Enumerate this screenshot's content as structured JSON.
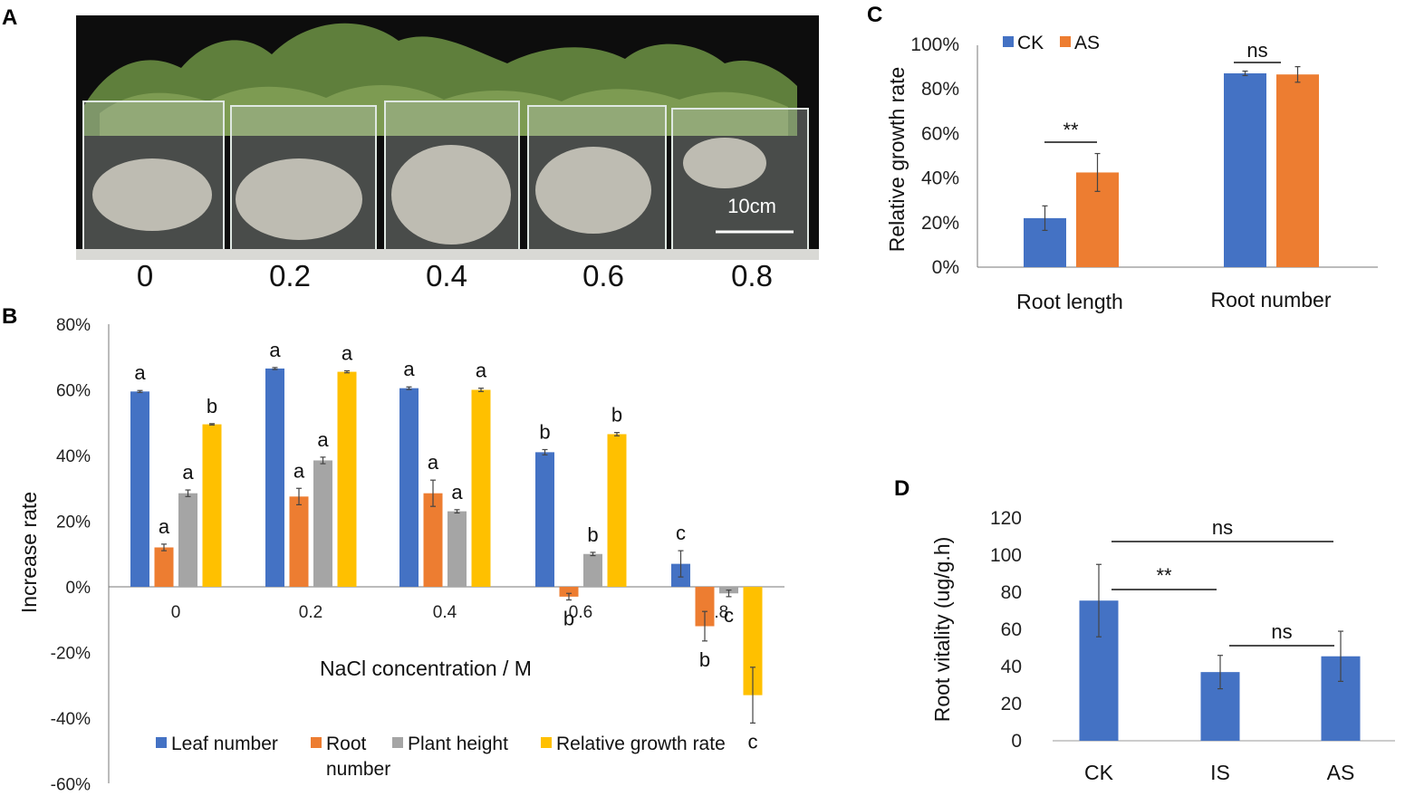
{
  "panel_labels": {
    "a": "A",
    "b": "B",
    "c": "C",
    "d": "D"
  },
  "photo": {
    "labels": [
      "0",
      "0.2",
      "0.4",
      "0.6",
      "0.8"
    ],
    "scale_bar_label": "10cm"
  },
  "chart_data": [
    {
      "panel": "B",
      "type": "bar",
      "xlabel": "NaCl concentration / M",
      "ylabel": "Increase rate",
      "ylim": [
        -60,
        80
      ],
      "yticks": [
        -60,
        -40,
        -20,
        0,
        20,
        40,
        60,
        80
      ],
      "ytick_labels": [
        "-60%",
        "-40%",
        "-20%",
        "0%",
        "20%",
        "40%",
        "60%",
        "80%"
      ],
      "categories": [
        "0",
        "0.2",
        "0.4",
        "0.6",
        "0.8"
      ],
      "series": [
        {
          "name": "Leaf number",
          "color": "#4472C4",
          "values": [
            59.5,
            66.5,
            60.5,
            41,
            7
          ],
          "errors": [
            0.3,
            0.3,
            0.4,
            0.8,
            4
          ],
          "letters": [
            "a",
            "a",
            "a",
            "b",
            "c"
          ]
        },
        {
          "name": "Root number",
          "color": "#ED7D31",
          "values": [
            12,
            27.5,
            28.5,
            -3,
            -12
          ],
          "errors": [
            1,
            2.5,
            4,
            1,
            4.5
          ],
          "letters": [
            "a",
            "a",
            "a",
            "b",
            "b"
          ]
        },
        {
          "name": "Plant height",
          "color": "#A5A5A5",
          "values": [
            28.5,
            38.5,
            23,
            10,
            -2
          ],
          "errors": [
            1,
            1,
            0.5,
            0.5,
            1
          ],
          "letters": [
            "a",
            "a",
            "a",
            "b",
            "c"
          ]
        },
        {
          "name": "Relative growth rate",
          "color": "#FFC000",
          "values": [
            49.5,
            65.5,
            60,
            46.5,
            -33
          ],
          "errors": [
            0.2,
            0.3,
            0.5,
            0.5,
            8.5
          ],
          "letters": [
            "b",
            "a",
            "a",
            "b",
            "c"
          ]
        }
      ],
      "legend": {
        "leaf": "Leaf number",
        "root_line1": "Root",
        "root_line2": "number",
        "height": "Plant height",
        "rgr": "Relative growth rate"
      }
    },
    {
      "panel": "C",
      "type": "bar",
      "ylabel": "Relative growth rate",
      "ylim": [
        0,
        100
      ],
      "yticks": [
        0,
        20,
        40,
        60,
        80,
        100
      ],
      "ytick_labels": [
        "0%",
        "20%",
        "40%",
        "60%",
        "80%",
        "100%"
      ],
      "categories": [
        "Root length",
        "Root number"
      ],
      "series": [
        {
          "name": "CK",
          "color": "#4472C4",
          "values": [
            22,
            87
          ],
          "errors": [
            5.5,
            1
          ]
        },
        {
          "name": "AS",
          "color": "#ED7D31",
          "values": [
            42.5,
            86.5
          ],
          "errors": [
            8.5,
            3.5
          ]
        }
      ],
      "significance": [
        "**",
        "ns"
      ]
    },
    {
      "panel": "D",
      "type": "bar",
      "ylabel": "Root vitality (ug/g.h)",
      "ylim": [
        0,
        120
      ],
      "yticks": [
        0,
        20,
        40,
        60,
        80,
        100,
        120
      ],
      "ytick_labels": [
        "0",
        "20",
        "40",
        "60",
        "80",
        "100",
        "120"
      ],
      "categories": [
        "CK",
        "IS",
        "AS"
      ],
      "values": [
        75.5,
        37,
        45.5
      ],
      "errors": [
        19.5,
        9,
        13.5
      ],
      "color": "#4472C4",
      "significance": [
        {
          "label": "ns",
          "from": "CK",
          "to": "AS"
        },
        {
          "label": "**",
          "from": "CK",
          "to": "IS"
        },
        {
          "label": "ns",
          "from": "IS",
          "to": "AS"
        }
      ]
    }
  ]
}
